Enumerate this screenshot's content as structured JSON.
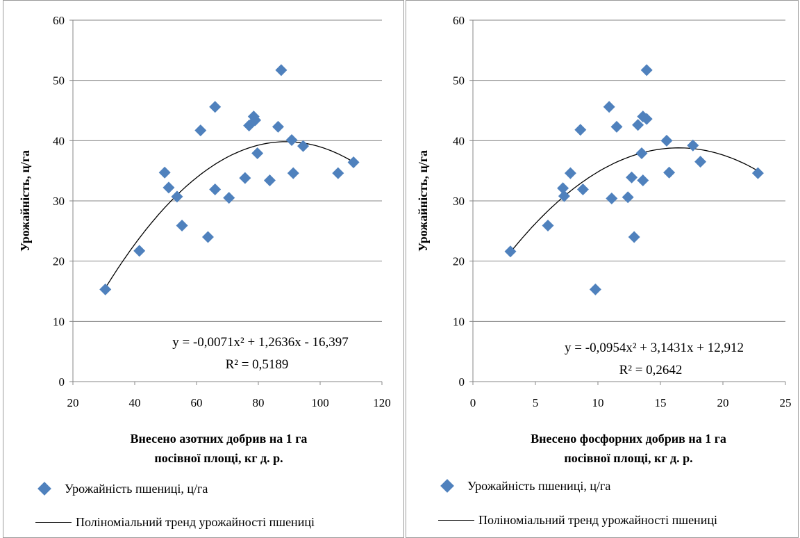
{
  "colors": {
    "marker": "#4f81bd",
    "trend": "#000000",
    "grid": "#878787"
  },
  "chart_data": [
    {
      "type": "scatter",
      "ylabel": "Урожайність, ц/га",
      "xlabel_line1": "Внесено азотних добрив на 1 га",
      "xlabel_line2": "посівної площі, кг д. р.",
      "xlim": [
        20,
        120
      ],
      "ylim": [
        0,
        60
      ],
      "xticks": [
        20,
        40,
        60,
        80,
        100,
        120
      ],
      "yticks": [
        0,
        10,
        20,
        30,
        40,
        50,
        60
      ],
      "grid": "horizontal",
      "series": [
        {
          "name": "Урожайність пшениці, ц/га",
          "points": [
            [
              30.5,
              15.3
            ],
            [
              41.5,
              21.7
            ],
            [
              49.7,
              34.7
            ],
            [
              51,
              32.2
            ],
            [
              53.7,
              30.7
            ],
            [
              55.3,
              25.9
            ],
            [
              61.3,
              41.7
            ],
            [
              63.7,
              24.0
            ],
            [
              66,
              45.6
            ],
            [
              66,
              31.9
            ],
            [
              70.5,
              30.5
            ],
            [
              75.7,
              33.8
            ],
            [
              77,
              42.5
            ],
            [
              78.5,
              44.0
            ],
            [
              79,
              43.4
            ],
            [
              79.7,
              37.9
            ],
            [
              83.7,
              33.4
            ],
            [
              86.4,
              42.3
            ],
            [
              87.4,
              51.7
            ],
            [
              90.8,
              40.1
            ],
            [
              91.3,
              34.6
            ],
            [
              94.5,
              39.1
            ],
            [
              105.8,
              34.6
            ],
            [
              110.8,
              36.4
            ]
          ]
        }
      ],
      "trend": {
        "name": "Поліноміальний тренд урожайності пшениці",
        "coeffs": [
          -0.0071,
          1.2636,
          -16.397
        ],
        "xrange": [
          30.5,
          111
        ],
        "equation": "y = -0,0071x² + 1,2636x - 16,397",
        "r2": "R² = 0,5189"
      }
    },
    {
      "type": "scatter",
      "ylabel": "Урожайність, ц/га",
      "xlabel_line1": "Внесено фосфорних добрив на 1 га",
      "xlabel_line2": "посівної площі, кг д. р.",
      "xlim": [
        0,
        25
      ],
      "ylim": [
        0,
        60
      ],
      "xticks": [
        0,
        5,
        10,
        15,
        20,
        25
      ],
      "yticks": [
        0,
        10,
        20,
        30,
        40,
        50,
        60
      ],
      "grid": "horizontal",
      "series": [
        {
          "name": "Урожайність пшениці, ц/га",
          "points": [
            [
              3,
              21.6
            ],
            [
              6,
              25.9
            ],
            [
              7.2,
              32.1
            ],
            [
              7.3,
              30.8
            ],
            [
              7.8,
              34.6
            ],
            [
              8.6,
              41.8
            ],
            [
              8.8,
              31.9
            ],
            [
              9.8,
              15.3
            ],
            [
              10.9,
              45.6
            ],
            [
              11.1,
              30.4
            ],
            [
              11.5,
              42.3
            ],
            [
              12.4,
              30.6
            ],
            [
              12.7,
              33.9
            ],
            [
              12.9,
              24.0
            ],
            [
              13.2,
              42.6
            ],
            [
              13.5,
              37.9
            ],
            [
              13.6,
              33.4
            ],
            [
              13.6,
              44.0
            ],
            [
              13.9,
              43.6
            ],
            [
              13.9,
              51.7
            ],
            [
              15.5,
              40.0
            ],
            [
              15.7,
              34.7
            ],
            [
              17.6,
              39.2
            ],
            [
              18.2,
              36.5
            ],
            [
              22.8,
              34.6
            ]
          ]
        }
      ],
      "trend": {
        "name": "Поліноміальний тренд урожайності пшениці",
        "coeffs": [
          -0.0954,
          3.1431,
          12.912
        ],
        "xrange": [
          3,
          22.9
        ],
        "equation": "y = -0,0954x² + 3,1431x + 12,912",
        "r2": "R² = 0,2642"
      }
    }
  ]
}
